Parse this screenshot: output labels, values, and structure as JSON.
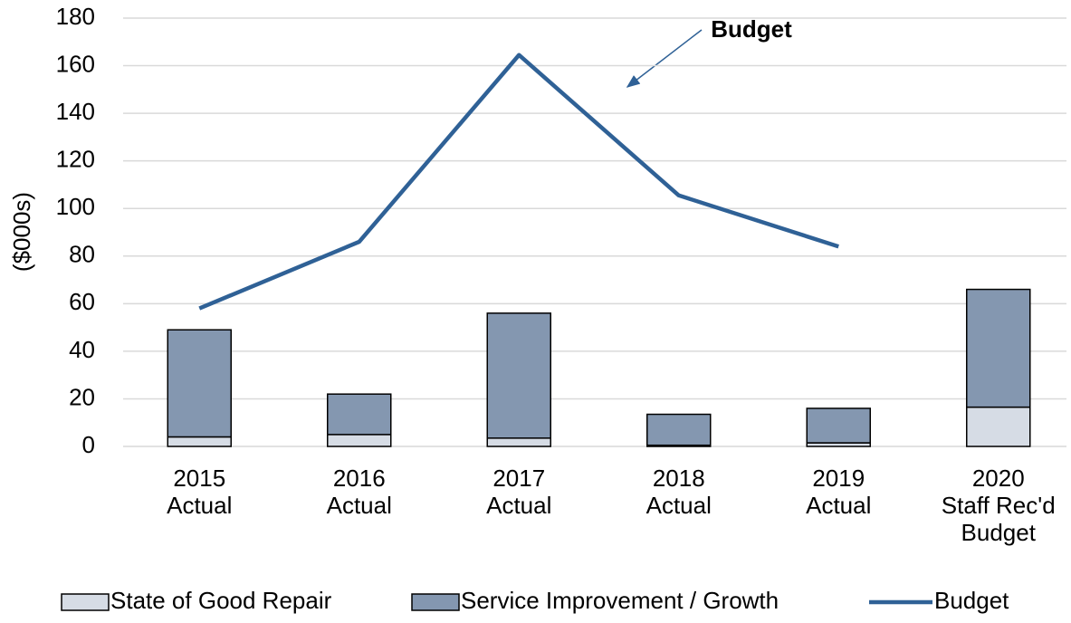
{
  "chart_data": {
    "type": "bar",
    "y_label": "($000s)",
    "annotation": "Budget",
    "categories": [
      "2015\nActual",
      "2016\nActual",
      "2017\nActual",
      "2018\nActual",
      "2019\nActual",
      "2020\nStaff Rec'd\nBudget"
    ],
    "series": [
      {
        "name": "State of Good Repair",
        "type": "bar",
        "color": "#d6dce5",
        "values": [
          4,
          5,
          3.5,
          0.5,
          1.5,
          16.5
        ]
      },
      {
        "name": "Service Improvement / Growth",
        "type": "bar",
        "color": "#8497b0",
        "values": [
          45,
          17,
          52.5,
          13,
          14.5,
          49.5
        ]
      },
      {
        "name": "Budget",
        "type": "line",
        "color": "#2f6196",
        "values": [
          58,
          86,
          164.5,
          105.5,
          84,
          null
        ]
      }
    ],
    "ylim": [
      0,
      180
    ],
    "yticks": [
      0,
      20,
      40,
      60,
      80,
      100,
      120,
      140,
      160,
      180
    ],
    "grid": true,
    "legend": "bottom"
  }
}
